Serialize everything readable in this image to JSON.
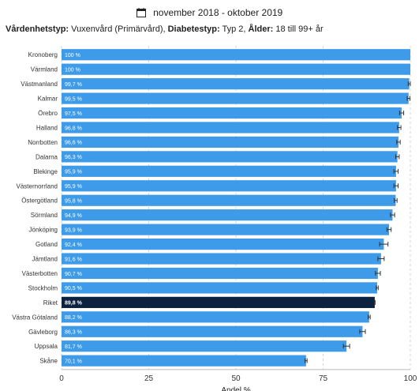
{
  "header": {
    "date_range": "november 2018 - oktober 2019",
    "filters": [
      {
        "label": "Vårdenhetstyp:",
        "value": "Vuxenvård (Primärvård),"
      },
      {
        "label": "Diabetestyp:",
        "value": "Typ 2,"
      },
      {
        "label": "Ålder:",
        "value": "18 till 99+ år"
      }
    ]
  },
  "colors": {
    "bar": "#3d9be9",
    "highlight": "#0d2240",
    "error": "#333333"
  },
  "chart_data": {
    "type": "bar",
    "orientation": "horizontal",
    "categories": [
      "Kronoberg",
      "Värmland",
      "Västmanland",
      "Kalmar",
      "Örebro",
      "Halland",
      "Norrbotten",
      "Dalarna",
      "Blekinge",
      "Västernorrland",
      "Östergötland",
      "Sörmland",
      "Jönköping",
      "Gotland",
      "Jämtland",
      "Västerbotten",
      "Stockholm",
      "Riket",
      "Västra Götaland",
      "Gävleborg",
      "Uppsala",
      "Skåne"
    ],
    "values": [
      100,
      100,
      99.7,
      99.5,
      97.5,
      96.8,
      96.6,
      96.3,
      95.9,
      95.9,
      95.8,
      94.9,
      93.9,
      92.4,
      91.6,
      90.7,
      90.5,
      89.8,
      88.2,
      86.3,
      81.7,
      70.1
    ],
    "value_labels": [
      "100 %",
      "100 %",
      "99,7 %",
      "99,5 %",
      "97,5 %",
      "96,8 %",
      "96,6 %",
      "96,3 %",
      "95,9 %",
      "95,9 %",
      "95,8 %",
      "94,9 %",
      "93,9 %",
      "92,4 %",
      "91,6 %",
      "90,7 %",
      "90,5 %",
      "89,8 %",
      "88,2 %",
      "86,3 %",
      "81,7 %",
      "70,1 %"
    ],
    "error_bars": [
      0,
      0,
      0.3,
      0.4,
      0.6,
      0.5,
      0.5,
      0.5,
      0.6,
      0.6,
      0.4,
      0.6,
      0.6,
      1.2,
      0.9,
      0.7,
      0.3,
      0.1,
      0.3,
      0.8,
      0.9,
      0.3
    ],
    "highlight_category": "Riket",
    "xlabel": "Andel %",
    "ylabel": "",
    "xlim": [
      0,
      100
    ],
    "xticks": [
      0,
      25,
      50,
      75,
      100
    ],
    "grid": "vertical dashed"
  }
}
